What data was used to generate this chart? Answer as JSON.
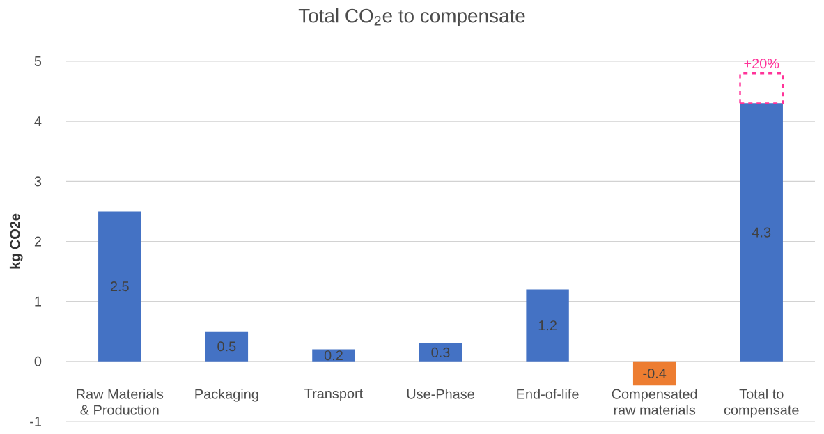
{
  "chart_data": {
    "type": "bar",
    "title": "Total  CO$_{2}$e to compensate",
    "ylabel": "kg CO2e",
    "categories": [
      "Raw Materials\n& Production",
      "Packaging",
      "Transport",
      "Use-Phase",
      "End-of-life",
      "Compensated\nraw materials",
      "Total to\ncompensate"
    ],
    "stacked": true,
    "series": [
      {
        "colors": [
          "#4472c4",
          "#4472c4",
          "#4472c4",
          "#4472c4",
          "#4472c4",
          "#ed7d31",
          "#4472c4"
        ],
        "values": [
          2.5,
          0.5,
          0.2,
          0.3,
          1.2,
          -0.4,
          4.3
        ],
        "value_labels": [
          "2.5",
          "0.5",
          "0.2",
          "0.3",
          "1.2",
          "-0.4",
          "4.3"
        ]
      },
      {
        "color": "#ff3399",
        "line_style": "dashed",
        "values": [
          null,
          null,
          null,
          null,
          null,
          null,
          0.5
        ]
      }
    ],
    "annotations": [
      {
        "text": "+20%",
        "x": "Total to\ncompensate",
        "y": 4.8
      }
    ],
    "ylim": [
      -1,
      5
    ],
    "yticks": [
      -1,
      0,
      1,
      2,
      3,
      4,
      5
    ],
    "grid": "y"
  }
}
